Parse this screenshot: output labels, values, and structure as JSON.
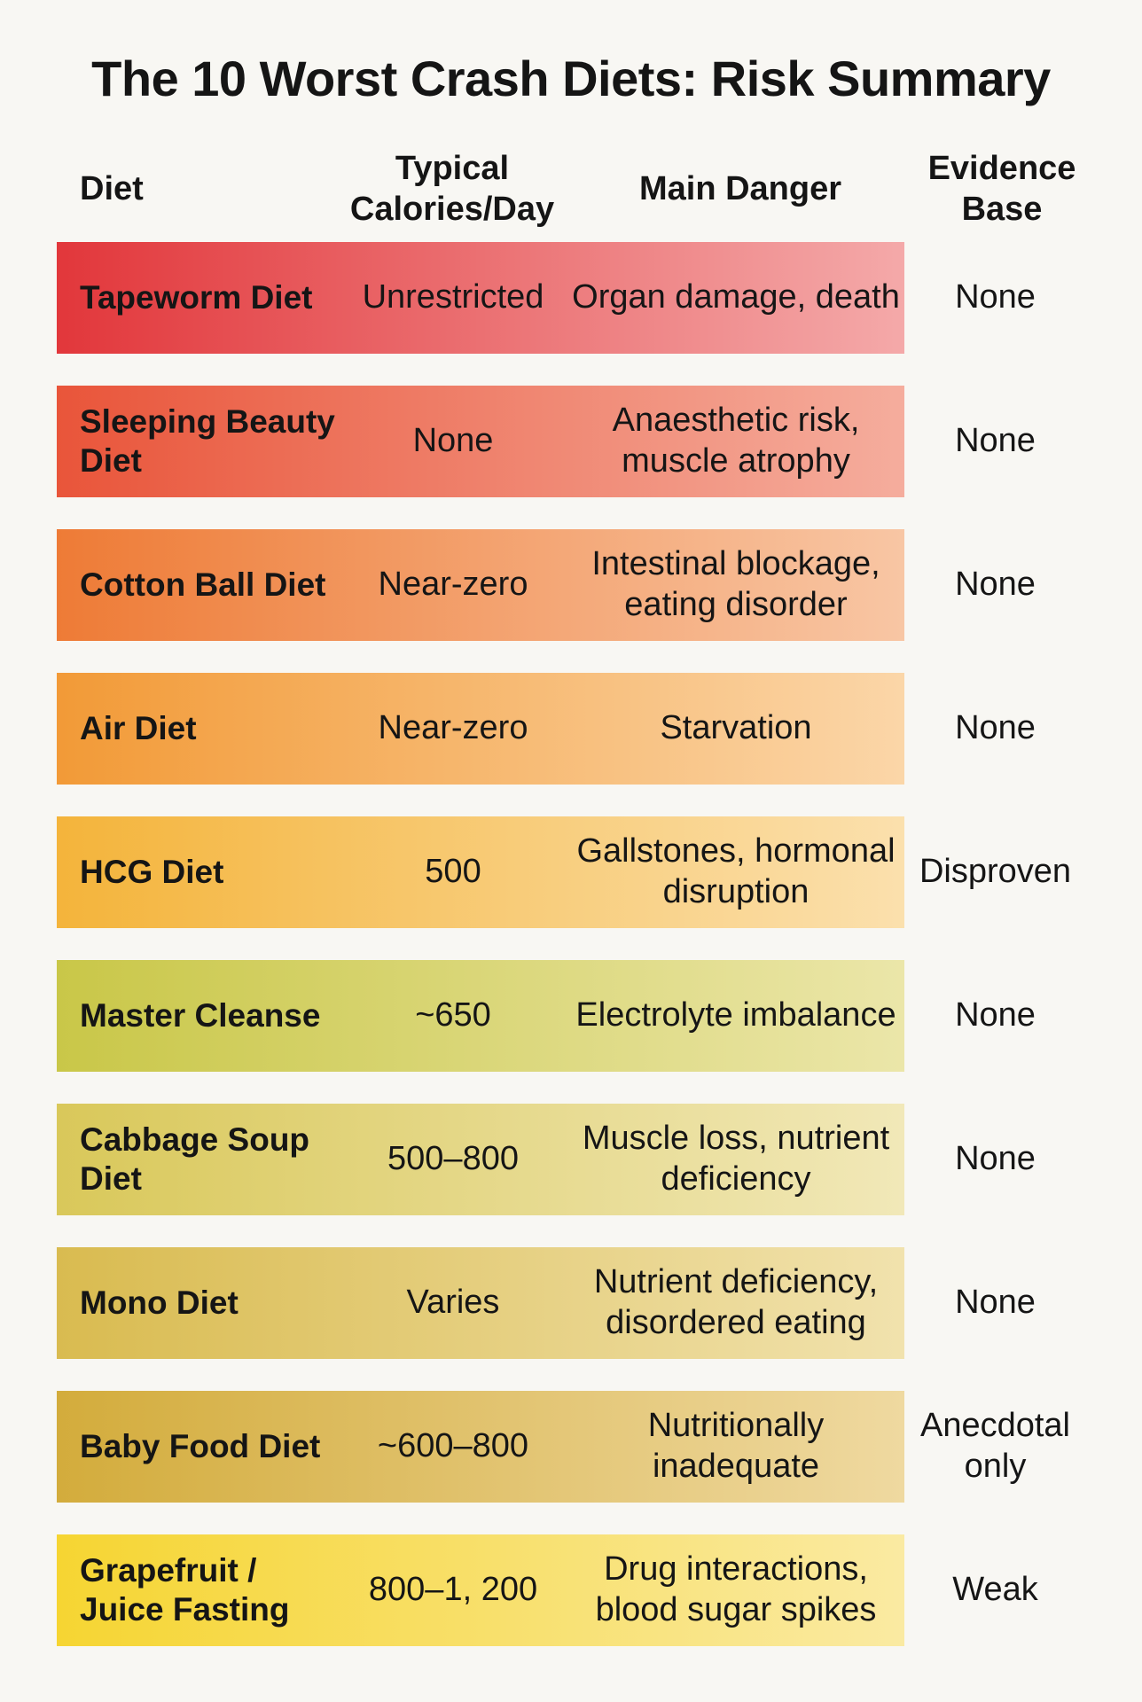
{
  "title": "The 10 Worst Crash Diets: Risk Summary",
  "columns": {
    "diet": "Diet",
    "calories": "Typical Calories/Day",
    "danger": "Main Danger",
    "evidence": "Evidence Base"
  },
  "rows": [
    {
      "diet": "Tapeworm Diet",
      "calories": "Unrestricted",
      "danger": "Organ damage, death",
      "evidence": "None",
      "color_start": "#e2373b",
      "color_end": "#f4a9a9"
    },
    {
      "diet": "Sleeping Beauty Diet",
      "calories": "None",
      "danger": "Anaesthetic risk, muscle atrophy",
      "evidence": "None",
      "color_start": "#e9553a",
      "color_end": "#f5ad9d"
    },
    {
      "diet": "Cotton Ball Diet",
      "calories": "Near-zero",
      "danger": "Intestinal blockage, eating disorder",
      "evidence": "None",
      "color_start": "#ee7b36",
      "color_end": "#f8c6a4"
    },
    {
      "diet": "Air Diet",
      "calories": "Near-zero",
      "danger": "Starvation",
      "evidence": "None",
      "color_start": "#f29a37",
      "color_end": "#fbd6a8"
    },
    {
      "diet": "HCG Diet",
      "calories": "500",
      "danger": "Gallstones, hormonal disruption",
      "evidence": "Disproven",
      "color_start": "#f4b43b",
      "color_end": "#fbe0ad"
    },
    {
      "diet": "Master Cleanse",
      "calories": "~650",
      "danger": "Electrolyte imbalance",
      "evidence": "None",
      "color_start": "#c9c748",
      "color_end": "#ebe6a9"
    },
    {
      "diet": "Cabbage Soup Diet",
      "calories": "500–800",
      "danger": "Muscle loss, nutrient deficiency",
      "evidence": "None",
      "color_start": "#d9c85a",
      "color_end": "#f1e8b8"
    },
    {
      "diet": "Mono Diet",
      "calories": "Varies",
      "danger": "Nutrient deficiency, disordered eating",
      "evidence": "None",
      "color_start": "#d9bb50",
      "color_end": "#f1e2ad"
    },
    {
      "diet": "Baby Food Diet",
      "calories": "~600–800",
      "danger": "Nutritionally inadequate",
      "evidence": "Anecdotal only",
      "color_start": "#d3ac3c",
      "color_end": "#efd9a0"
    },
    {
      "diet": "Grapefruit / Juice Fasting",
      "calories": "800–1, 200",
      "danger": "Drug interactions, blood sugar spikes",
      "evidence": "Weak",
      "color_start": "#f6d532",
      "color_end": "#faeaa2"
    }
  ]
}
